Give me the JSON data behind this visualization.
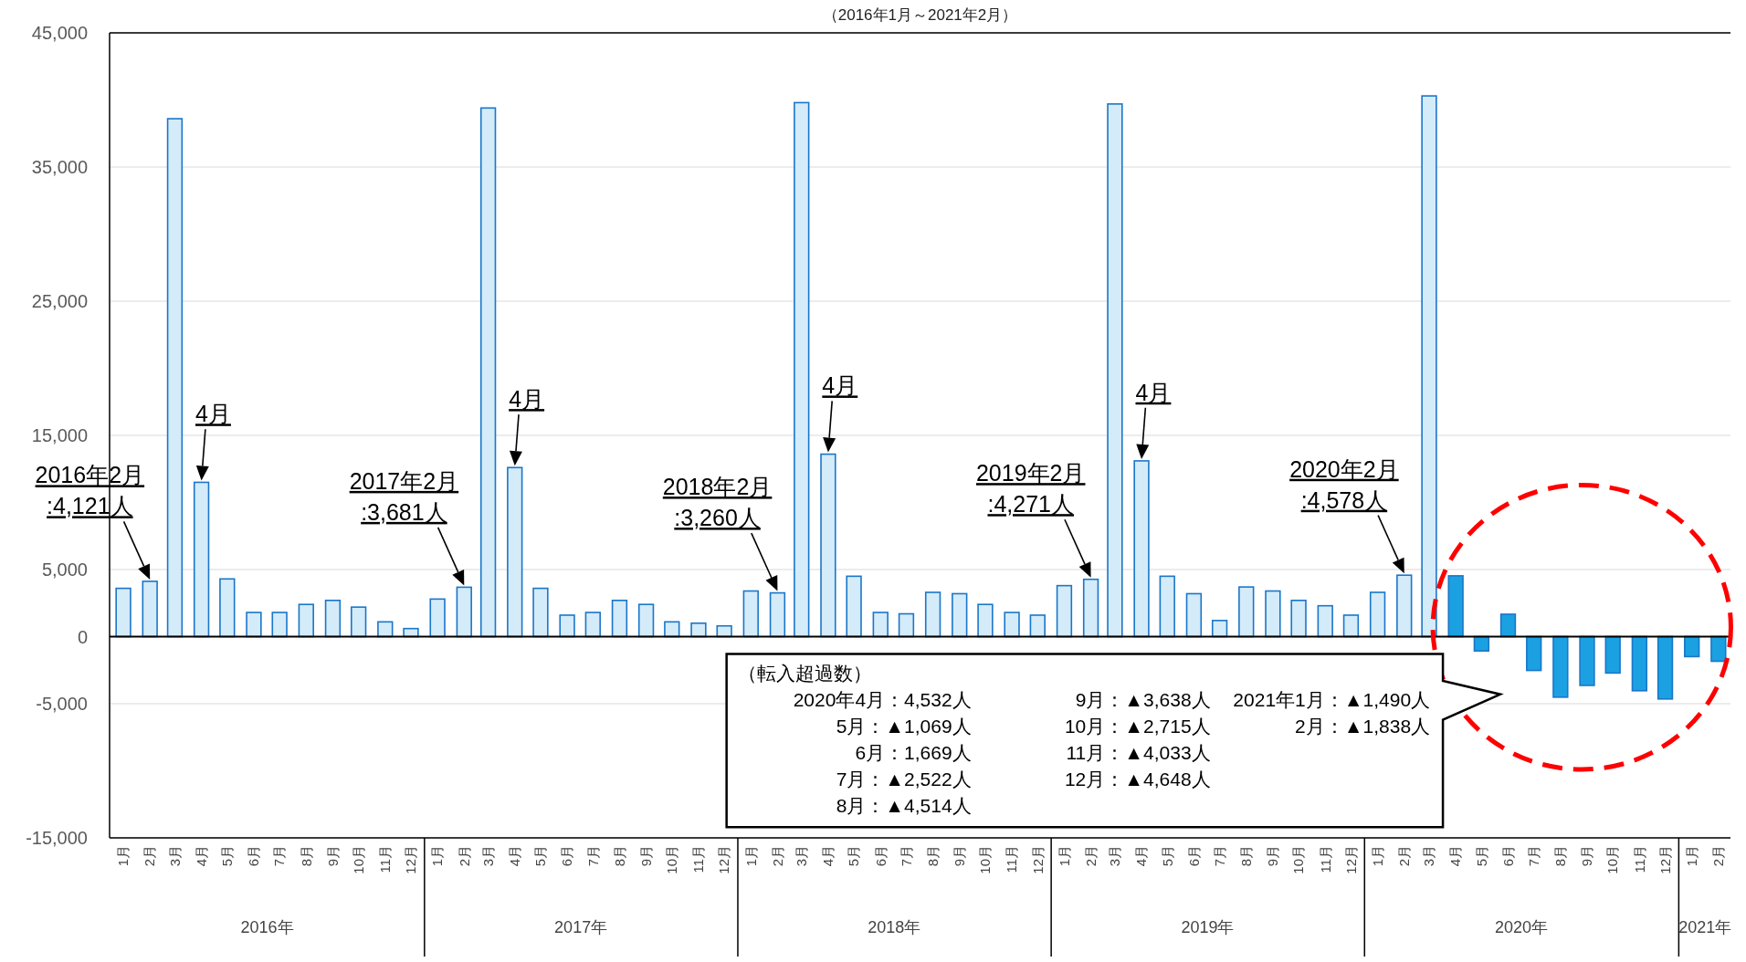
{
  "chart_data": {
    "type": "bar",
    "title": "（2016年1月～2021年2月）",
    "x": [
      "2016-01",
      "2016-02",
      "2016-03",
      "2016-04",
      "2016-05",
      "2016-06",
      "2016-07",
      "2016-08",
      "2016-09",
      "2016-10",
      "2016-11",
      "2016-12",
      "2017-01",
      "2017-02",
      "2017-03",
      "2017-04",
      "2017-05",
      "2017-06",
      "2017-07",
      "2017-08",
      "2017-09",
      "2017-10",
      "2017-11",
      "2017-12",
      "2018-01",
      "2018-02",
      "2018-03",
      "2018-04",
      "2018-05",
      "2018-06",
      "2018-07",
      "2018-08",
      "2018-09",
      "2018-10",
      "2018-11",
      "2018-12",
      "2019-01",
      "2019-02",
      "2019-03",
      "2019-04",
      "2019-05",
      "2019-06",
      "2019-07",
      "2019-08",
      "2019-09",
      "2019-10",
      "2019-11",
      "2019-12",
      "2020-01",
      "2020-02",
      "2020-03",
      "2020-04",
      "2020-05",
      "2020-06",
      "2020-07",
      "2020-08",
      "2020-09",
      "2020-10",
      "2020-11",
      "2020-12",
      "2021-01",
      "2021-02"
    ],
    "values": [
      3600,
      4121,
      38600,
      11500,
      4300,
      1800,
      1800,
      2400,
      2700,
      2200,
      1100,
      600,
      2800,
      3681,
      39400,
      12600,
      3600,
      1600,
      1800,
      2700,
      2400,
      1100,
      1000,
      800,
      3400,
      3260,
      39800,
      13600,
      4500,
      1800,
      1700,
      3300,
      3200,
      2400,
      1800,
      1600,
      3800,
      4271,
      39700,
      13100,
      4500,
      3200,
      1200,
      3700,
      3400,
      2700,
      2300,
      1600,
      3300,
      4578,
      40300,
      4532,
      -1069,
      1669,
      -2522,
      -4514,
      -3638,
      -2715,
      -4033,
      -4648,
      -1490,
      -1838
    ],
    "colors": [
      "#d4ebf9",
      "#d4ebf9",
      "#d4ebf9",
      "#d4ebf9",
      "#d4ebf9",
      "#d4ebf9",
      "#d4ebf9",
      "#d4ebf9",
      "#d4ebf9",
      "#d4ebf9",
      "#d4ebf9",
      "#d4ebf9",
      "#d4ebf9",
      "#d4ebf9",
      "#d4ebf9",
      "#d4ebf9",
      "#d4ebf9",
      "#d4ebf9",
      "#d4ebf9",
      "#d4ebf9",
      "#d4ebf9",
      "#d4ebf9",
      "#d4ebf9",
      "#d4ebf9",
      "#d4ebf9",
      "#d4ebf9",
      "#d4ebf9",
      "#d4ebf9",
      "#d4ebf9",
      "#d4ebf9",
      "#d4ebf9",
      "#d4ebf9",
      "#d4ebf9",
      "#d4ebf9",
      "#d4ebf9",
      "#d4ebf9",
      "#d4ebf9",
      "#d4ebf9",
      "#d4ebf9",
      "#d4ebf9",
      "#d4ebf9",
      "#d4ebf9",
      "#d4ebf9",
      "#d4ebf9",
      "#d4ebf9",
      "#d4ebf9",
      "#d4ebf9",
      "#d4ebf9",
      "#d4ebf9",
      "#d4ebf9",
      "#d4ebf9",
      "#1ba1e2",
      "#1ba1e2",
      "#1ba1e2",
      "#1ba1e2",
      "#1ba1e2",
      "#1ba1e2",
      "#1ba1e2",
      "#1ba1e2",
      "#1ba1e2",
      "#1ba1e2",
      "#1ba1e2"
    ],
    "xticks": [
      {
        "value": "2016-01",
        "label": "1月"
      },
      {
        "value": "2016-02",
        "label": "2月"
      },
      {
        "value": "2016-03",
        "label": "3月"
      },
      {
        "value": "2016-04",
        "label": "4月"
      },
      {
        "value": "2016-05",
        "label": "5月"
      },
      {
        "value": "2016-06",
        "label": "6月"
      },
      {
        "value": "2016-07",
        "label": "7月"
      },
      {
        "value": "2016-08",
        "label": "8月"
      },
      {
        "value": "2016-09",
        "label": "9月"
      },
      {
        "value": "2016-10",
        "label": "10月"
      },
      {
        "value": "2016-11",
        "label": "11月"
      },
      {
        "value": "2016-12",
        "label": "12月"
      },
      {
        "value": "2017-01",
        "label": "1月"
      },
      {
        "value": "2017-02",
        "label": "2月"
      },
      {
        "value": "2017-03",
        "label": "3月"
      },
      {
        "value": "2017-04",
        "label": "4月"
      },
      {
        "value": "2017-05",
        "label": "5月"
      },
      {
        "value": "2017-06",
        "label": "6月"
      },
      {
        "value": "2017-07",
        "label": "7月"
      },
      {
        "value": "2017-08",
        "label": "8月"
      },
      {
        "value": "2017-09",
        "label": "9月"
      },
      {
        "value": "2017-10",
        "label": "10月"
      },
      {
        "value": "2017-11",
        "label": "11月"
      },
      {
        "value": "2017-12",
        "label": "12月"
      },
      {
        "value": "2018-01",
        "label": "1月"
      },
      {
        "value": "2018-02",
        "label": "2月"
      },
      {
        "value": "2018-03",
        "label": "3月"
      },
      {
        "value": "2018-04",
        "label": "4月"
      },
      {
        "value": "2018-05",
        "label": "5月"
      },
      {
        "value": "2018-06",
        "label": "6月"
      },
      {
        "value": "2018-07",
        "label": "7月"
      },
      {
        "value": "2018-08",
        "label": "8月"
      },
      {
        "value": "2018-09",
        "label": "9月"
      },
      {
        "value": "2018-10",
        "label": "10月"
      },
      {
        "value": "2018-11",
        "label": "11月"
      },
      {
        "value": "2018-12",
        "label": "12月"
      },
      {
        "value": "2019-01",
        "label": "1月"
      },
      {
        "value": "2019-02",
        "label": "2月"
      },
      {
        "value": "2019-03",
        "label": "3月"
      },
      {
        "value": "2019-04",
        "label": "4月"
      },
      {
        "value": "2019-05",
        "label": "5月"
      },
      {
        "value": "2019-06",
        "label": "6月"
      },
      {
        "value": "2019-07",
        "label": "7月"
      },
      {
        "value": "2019-08",
        "label": "8月"
      },
      {
        "value": "2019-09",
        "label": "9月"
      },
      {
        "value": "2019-10",
        "label": "10月"
      },
      {
        "value": "2019-11",
        "label": "11月"
      },
      {
        "value": "2019-12",
        "label": "12月"
      },
      {
        "value": "2020-01",
        "label": "1月"
      },
      {
        "value": "2020-02",
        "label": "2月"
      },
      {
        "value": "2020-03",
        "label": "3月"
      },
      {
        "value": "2020-04",
        "label": "4月"
      },
      {
        "value": "2020-05",
        "label": "5月"
      },
      {
        "value": "2020-06",
        "label": "6月"
      },
      {
        "value": "2020-07",
        "label": "7月"
      },
      {
        "value": "2020-08",
        "label": "8月"
      },
      {
        "value": "2020-09",
        "label": "9月"
      },
      {
        "value": "2020-10",
        "label": "10月"
      },
      {
        "value": "2020-11",
        "label": "11月"
      },
      {
        "value": "2020-12",
        "label": "12月"
      },
      {
        "value": "2021-01",
        "label": "1月"
      },
      {
        "value": "2021-02",
        "label": "2月"
      }
    ],
    "xlim": [
      "2015-12-16",
      "2021-02-15"
    ],
    "ylim": [
      -15000,
      45000
    ],
    "yticks": [
      {
        "value": -15000,
        "label": "-15,000"
      },
      {
        "value": -5000,
        "label": "-5,000"
      },
      0,
      {
        "value": 5000,
        "label": "5,000"
      },
      {
        "value": 15000,
        "label": "15,000"
      },
      {
        "value": 25000,
        "label": "25,000"
      },
      {
        "value": 35000,
        "label": "35,000"
      },
      {
        "value": 45000,
        "label": "45,000"
      }
    ],
    "grid": "y",
    "annotations": [
      {
        "text": "2016年2月\n:4,121人",
        "x": "2016-02",
        "y": 4121
      },
      {
        "text": "4月",
        "x": "2016-04",
        "y": 11500
      },
      {
        "text": "2017年2月\n:3,681人",
        "x": "2017-02",
        "y": 3681
      },
      {
        "text": "4月",
        "x": "2017-04",
        "y": 12600
      },
      {
        "text": "2018年2月\n:3,260人",
        "x": "2018-02",
        "y": 3260
      },
      {
        "text": "4月",
        "x": "2018-04",
        "y": 13600
      },
      {
        "text": "2019年2月\n:4,271人",
        "x": "2019-02",
        "y": 4271
      },
      {
        "text": "4月",
        "x": "2019-04",
        "y": 13100
      },
      {
        "text": "2020年2月\n:4,578人",
        "x": "2020-02",
        "y": 4578
      },
      "2016年",
      "2017年",
      "2018年",
      "2019年",
      "2020年",
      "2021年",
      "（転入超過数）",
      "2020年4月：4,532人",
      "5月：▲1,069人",
      "6月：1,669人",
      "7月：▲2,522人",
      "8月：▲4,514人",
      "9月：▲3,638人",
      "10月：▲2,715人",
      "11月：▲4,033人",
      "12月：▲4,648人",
      "2021年1月：▲1,490人",
      "2月：▲1,838人"
    ]
  }
}
